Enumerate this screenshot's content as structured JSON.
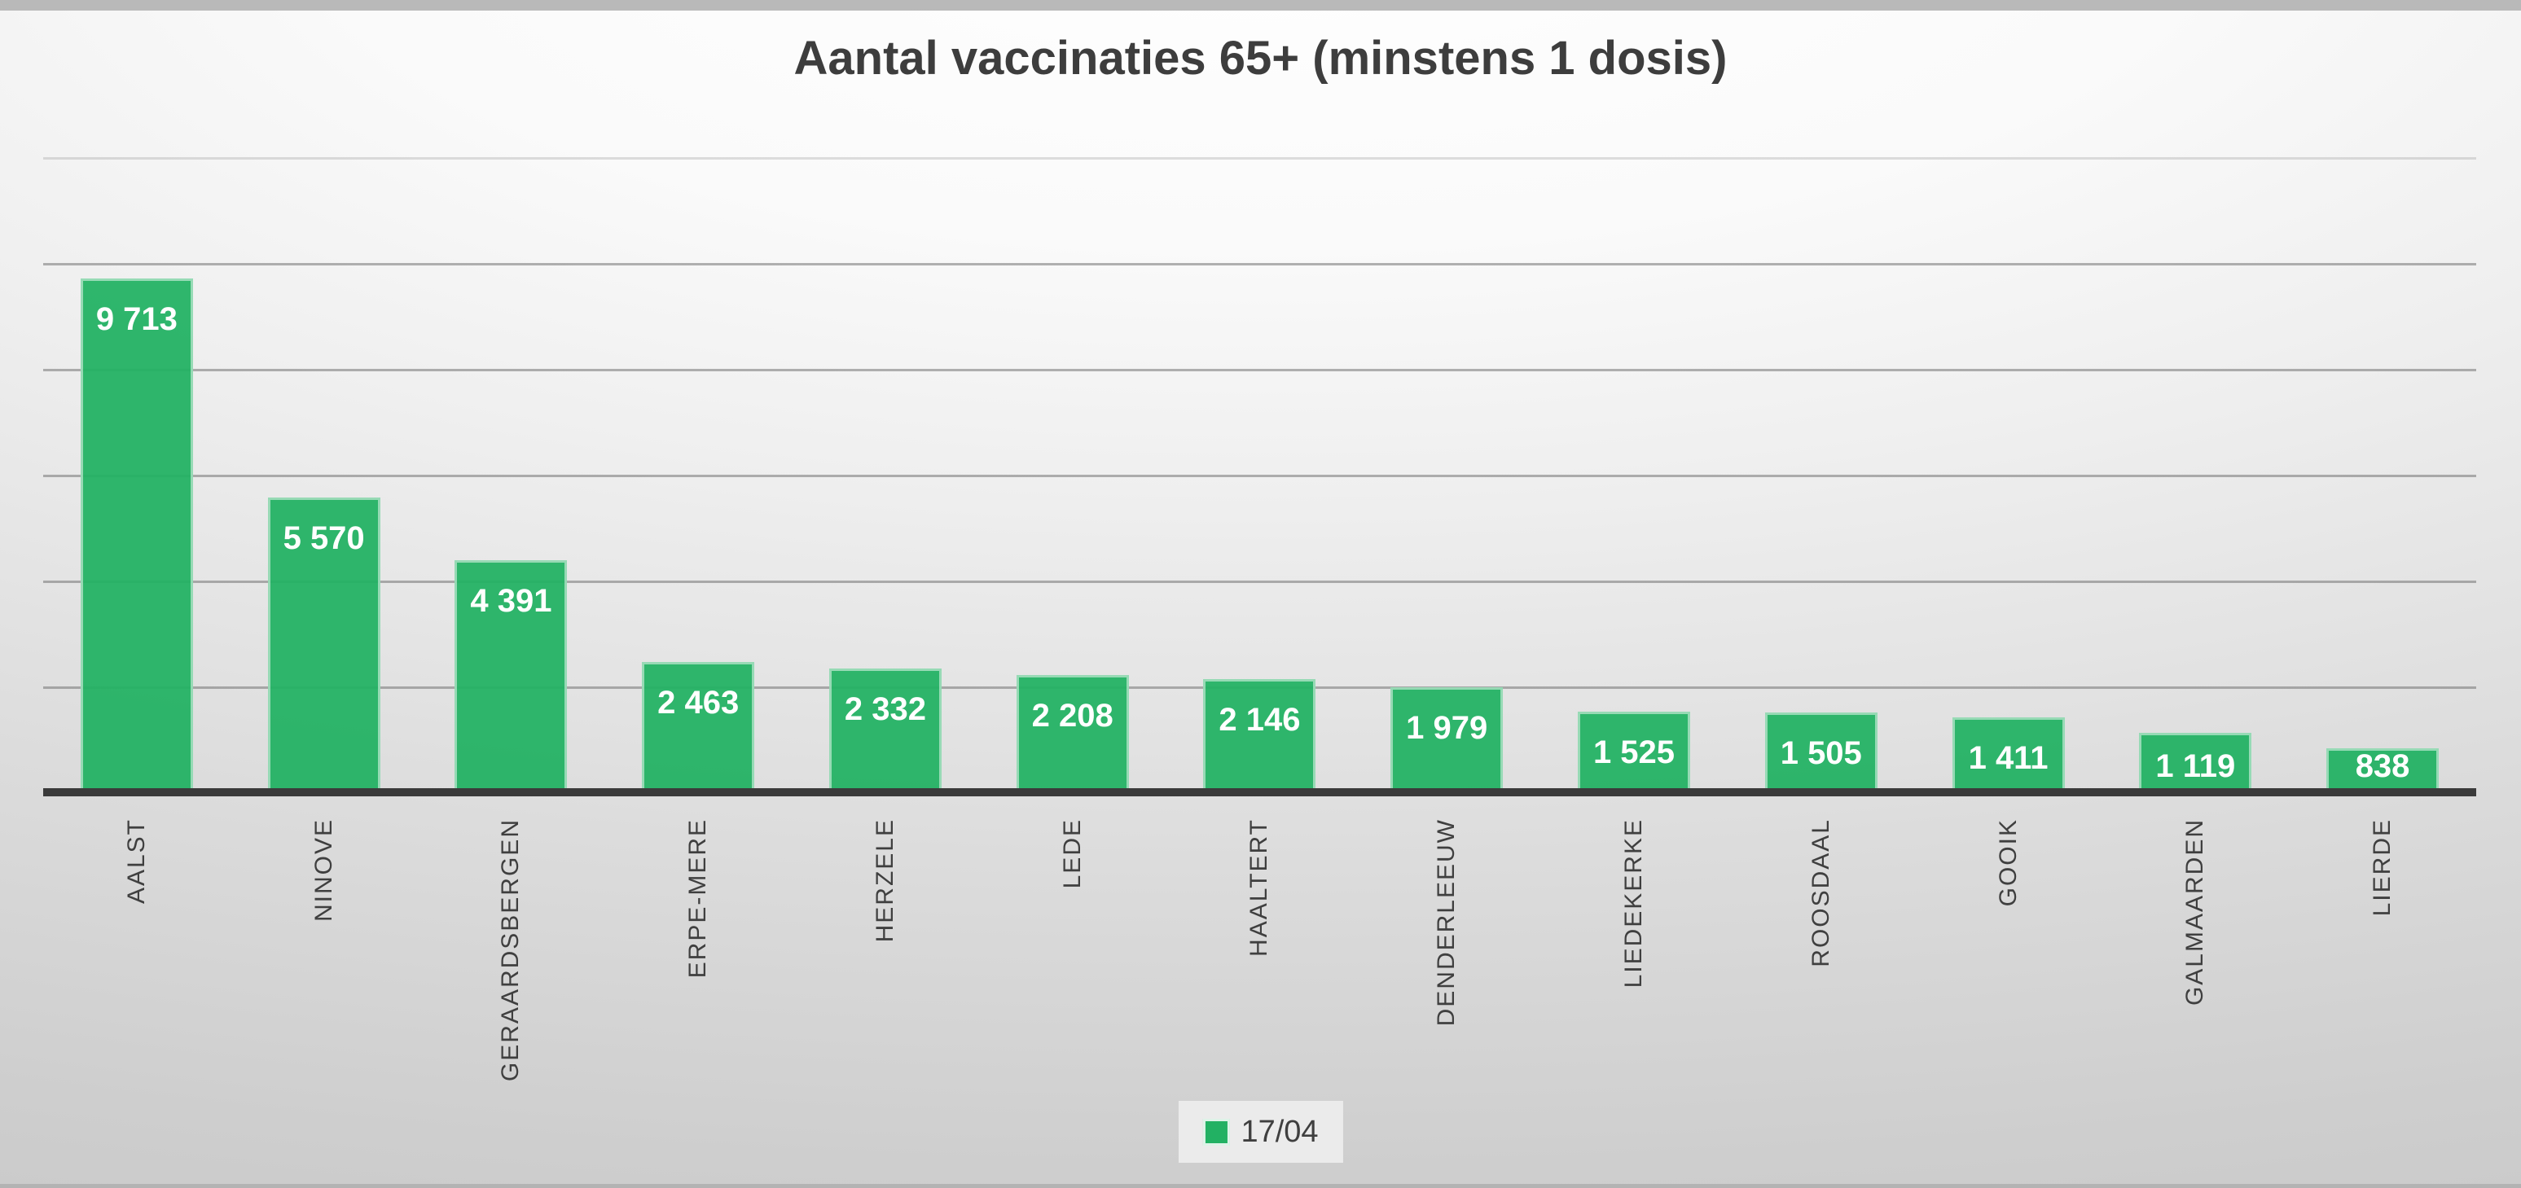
{
  "slide": {
    "title": "Aantal vaccinaties 65+ (minstens 1 dosis)"
  },
  "chart_data": {
    "type": "bar",
    "title": "Aantal vaccinaties 65+ (minstens 1 dosis)",
    "categories": [
      "AALST",
      "NINOVE",
      "GERAARDSBERGEN",
      "ERPE-MERE",
      "HERZELE",
      "LEDE",
      "HAALTERT",
      "DENDERLEEUW",
      "LIEDEKERKE",
      "ROOSDAAL",
      "GOOIK",
      "GALMAARDEN",
      "LIERDE"
    ],
    "series": [
      {
        "name": "17/04",
        "values": [
          9713,
          5570,
          4391,
          2463,
          2332,
          2208,
          2146,
          1979,
          1525,
          1505,
          1411,
          1119,
          838
        ],
        "value_labels": [
          "9 713",
          "5 570",
          "4 391",
          "2 463",
          "2 332",
          "2 208",
          "2 146",
          "1 979",
          "1 525",
          "1 505",
          "1 411",
          "1 119",
          "838"
        ]
      }
    ],
    "xlabel": "",
    "ylabel": "",
    "ylim": [
      0,
      12000
    ],
    "gridline_interval": 2000,
    "grid": "horizontal-only",
    "y_axis_tick_labels": "hidden",
    "x_label_rotation_degrees": 90,
    "data_label_position": "inside-end",
    "legend_position": "bottom-center",
    "colors": {
      "bar_fill": "#22B163",
      "bar_border": "rgba(255,255,255,0.5)",
      "data_label_text": "#FFFFFF",
      "gridline": "#9A9A9A",
      "axis_line": "#3A3A3A",
      "category_text": "#3F3F3F",
      "title_text": "#3D3D3D",
      "legend_bg": "#EBEBEB",
      "background_center": "#FFFFFF",
      "background_edge": "#C7C7C7"
    }
  }
}
